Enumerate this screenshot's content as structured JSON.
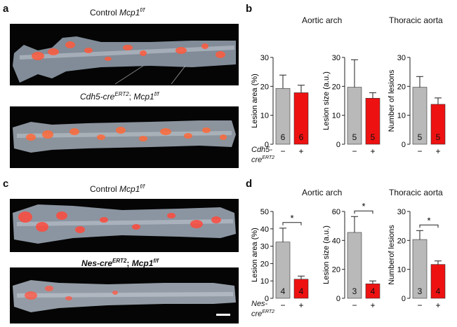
{
  "panels": {
    "a": {
      "letter": "a",
      "top_caption": {
        "pre": "Control ",
        "gene": "Mcp1",
        "sup": "f/f"
      },
      "bottom_caption": {
        "gene1": "Cdh5-cre",
        "sup1": "ERT2",
        "sep": "; ",
        "gene2": "Mcp1",
        "sup2": "f/f"
      }
    },
    "b": {
      "letter": "b",
      "left_title": "Aortic arch",
      "right_title": "Thoracic aorta",
      "genotype_label_line1": "Cdh5-",
      "genotype_label_line2": "cre",
      "genotype_label_sup": "ERT2"
    },
    "c": {
      "letter": "c",
      "top_caption": {
        "pre": "Control ",
        "gene": "Mcp1",
        "sup": "f/f"
      },
      "bottom_caption": {
        "gene1": "Nes-cre",
        "sup1": "ERT2",
        "sep": "; ",
        "gene2": "Mcp1",
        "sup2": "f/f"
      }
    },
    "d": {
      "letter": "d",
      "left_title": "Aortic arch",
      "right_title": "Thoracic aorta",
      "genotype_label_line1": "Nes-",
      "genotype_label_line2": "cre",
      "genotype_label_sup": "ERT2"
    }
  },
  "chart_data": [
    {
      "id": "b1",
      "type": "bar",
      "ylabel": "Lesion area (%)",
      "ylim": [
        0,
        30
      ],
      "yticks": [
        0,
        10,
        20,
        30
      ],
      "categories": [
        "−",
        "+"
      ],
      "values": [
        19.3,
        17.8
      ],
      "errors": [
        4.6,
        2.6
      ],
      "n": [
        "6",
        "6"
      ],
      "colors": [
        "#b9b9b9",
        "#ee1111"
      ],
      "significance": ""
    },
    {
      "id": "b2",
      "type": "bar",
      "ylabel": "Lesion size (a.u.)",
      "ylim": [
        0,
        30
      ],
      "yticks": [
        0,
        10,
        20,
        30
      ],
      "categories": [
        "−",
        "+"
      ],
      "values": [
        19.7,
        15.9
      ],
      "errors": [
        9.5,
        1.9
      ],
      "n": [
        "5",
        "5"
      ],
      "colors": [
        "#b9b9b9",
        "#ee1111"
      ],
      "significance": ""
    },
    {
      "id": "b3",
      "type": "bar",
      "ylabel": "Number of lesions",
      "ylim": [
        0,
        30
      ],
      "yticks": [
        0,
        10,
        20,
        30
      ],
      "categories": [
        "−",
        "+"
      ],
      "values": [
        19.7,
        13.8
      ],
      "errors": [
        3.7,
        2.2
      ],
      "n": [
        "5",
        "5"
      ],
      "colors": [
        "#b9b9b9",
        "#ee1111"
      ],
      "significance": ""
    },
    {
      "id": "d1",
      "type": "bar",
      "ylabel": "Lesion area (%)",
      "ylim": [
        0,
        50
      ],
      "yticks": [
        0,
        10,
        20,
        30,
        40,
        50
      ],
      "categories": [
        "−",
        "+"
      ],
      "values": [
        32.4,
        11.0
      ],
      "errors": [
        8.0,
        1.8
      ],
      "n": [
        "4",
        "4"
      ],
      "colors": [
        "#b9b9b9",
        "#ee1111"
      ],
      "significance": "*"
    },
    {
      "id": "d2",
      "type": "bar",
      "ylabel": "Lesion size (a.u.)",
      "ylim": [
        0,
        60
      ],
      "yticks": [
        0,
        20,
        40,
        60
      ],
      "categories": [
        "−",
        "+"
      ],
      "values": [
        45.5,
        10.0
      ],
      "errors": [
        11.0,
        2.0
      ],
      "n": [
        "3",
        "4"
      ],
      "colors": [
        "#b9b9b9",
        "#ee1111"
      ],
      "significance": "*"
    },
    {
      "id": "d3",
      "type": "bar",
      "ylabel": "Numberof lesions",
      "ylim": [
        0,
        30
      ],
      "yticks": [
        0,
        10,
        20,
        30
      ],
      "categories": [
        "−",
        "+"
      ],
      "values": [
        20.3,
        11.7
      ],
      "errors": [
        3.1,
        1.2
      ],
      "n": [
        "3",
        "4"
      ],
      "colors": [
        "#b9b9b9",
        "#ee1111"
      ],
      "significance": "*"
    }
  ]
}
